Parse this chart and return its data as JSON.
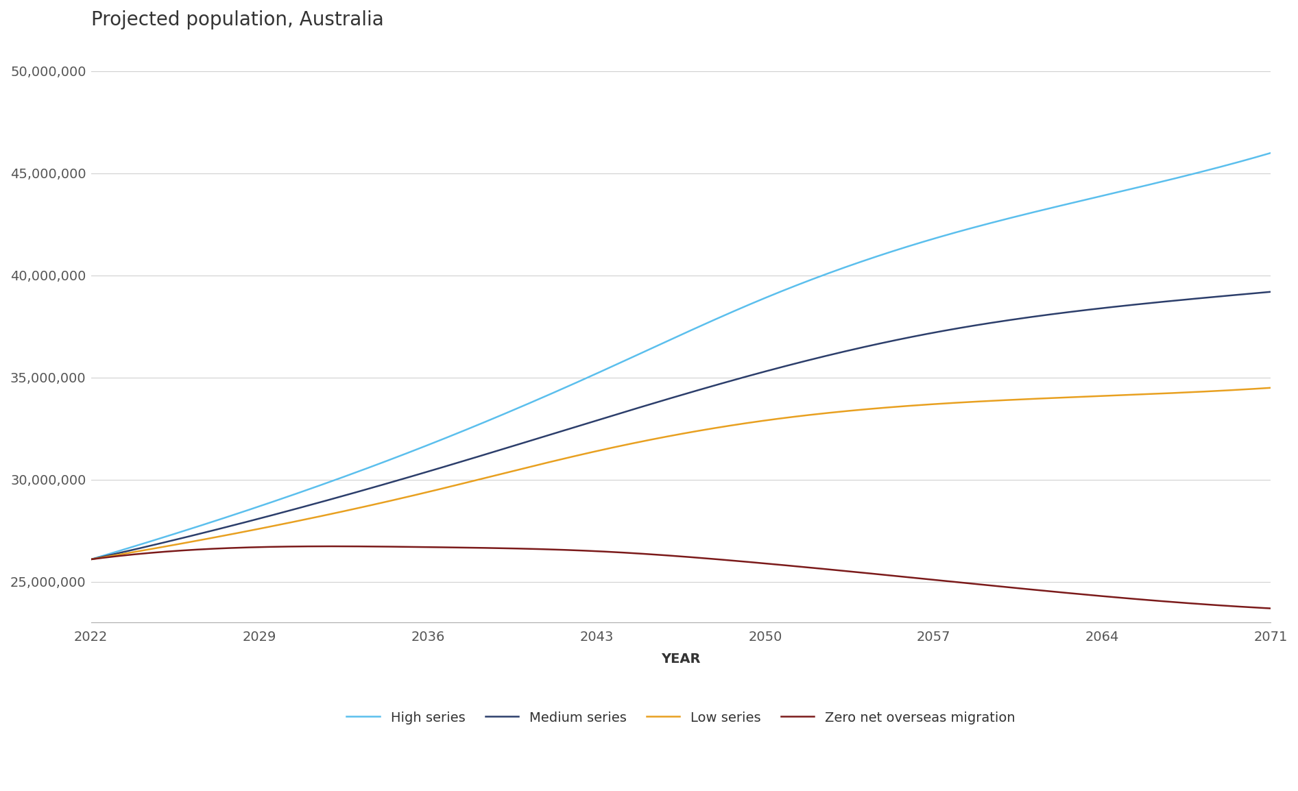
{
  "title": "Projected population, Australia",
  "xlabel": "YEAR",
  "ylabel": "",
  "background_color": "#ffffff",
  "x_ticks": [
    2022,
    2029,
    2036,
    2043,
    2050,
    2057,
    2064,
    2071
  ],
  "ylim": [
    23000000,
    51500000
  ],
  "y_ticks": [
    25000000,
    30000000,
    35000000,
    40000000,
    45000000,
    50000000
  ],
  "series": {
    "High series": {
      "color": "#5BBFED",
      "linewidth": 1.8,
      "years": [
        2022,
        2029,
        2036,
        2043,
        2050,
        2057,
        2064,
        2071
      ],
      "values": [
        26100000,
        28700000,
        31700000,
        35200000,
        38900000,
        41800000,
        43900000,
        46000000
      ]
    },
    "Medium series": {
      "color": "#2C3E6B",
      "linewidth": 1.8,
      "years": [
        2022,
        2029,
        2036,
        2043,
        2050,
        2057,
        2064,
        2071
      ],
      "values": [
        26100000,
        28100000,
        30400000,
        32900000,
        35300000,
        37200000,
        38400000,
        39200000
      ]
    },
    "Low series": {
      "color": "#E8A020",
      "linewidth": 1.8,
      "years": [
        2022,
        2029,
        2036,
        2043,
        2050,
        2057,
        2064,
        2071
      ],
      "values": [
        26100000,
        27600000,
        29400000,
        31400000,
        32900000,
        33700000,
        34100000,
        34500000
      ]
    },
    "Zero net overseas migration": {
      "color": "#7B1A1A",
      "linewidth": 1.8,
      "years": [
        2022,
        2029,
        2036,
        2043,
        2050,
        2057,
        2064,
        2071
      ],
      "values": [
        26100000,
        26700000,
        26700000,
        26500000,
        25900000,
        25100000,
        24300000,
        23700000
      ]
    }
  },
  "grid_color": "#d0d0d0",
  "title_fontsize": 20,
  "tick_fontsize": 14,
  "axis_label_fontsize": 14,
  "legend_fontsize": 14
}
